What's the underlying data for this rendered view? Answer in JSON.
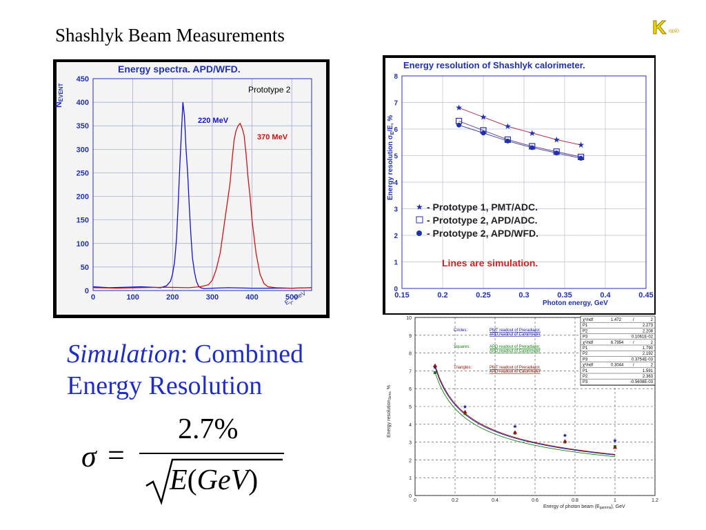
{
  "slide_title": "Shashlyk Beam Measurements",
  "logo_letter": "K",
  "logo_sub": "opio",
  "simulation_text": {
    "italic": "Simulation",
    "rest": ": Combined",
    "line2": "Energy Resolution"
  },
  "formula": {
    "lhs": "σ",
    "eq": "=",
    "numerator": "2.7%",
    "den_E": "E",
    "den_open": "(",
    "den_unit": "GeV",
    "den_close": ")"
  },
  "chart_data": [
    {
      "type": "line",
      "title": "Energy spectra. APD/WFD.",
      "annotation": "Prototype 2",
      "ylabel": "N",
      "ylabel_sub": "EVENT",
      "xlabel": "E",
      "xlabel_sub": "γ",
      "xlabel_unit": ", MeV",
      "xlim": [
        0,
        550
      ],
      "ylim": [
        0,
        450
      ],
      "xticks": [
        0,
        100,
        200,
        300,
        400,
        500
      ],
      "yticks": [
        0,
        50,
        100,
        150,
        200,
        250,
        300,
        350,
        400,
        450
      ],
      "grid": true,
      "series": [
        {
          "name": "220 MeV",
          "color": "#1010d0",
          "x": [
            0,
            40,
            80,
            120,
            150,
            170,
            185,
            195,
            200,
            205,
            210,
            214,
            218,
            222,
            226,
            230,
            234,
            238,
            242,
            246,
            250,
            255,
            260,
            265,
            270,
            280,
            300,
            340,
            400,
            500,
            550
          ],
          "y": [
            8,
            6,
            7,
            8,
            7,
            6,
            10,
            20,
            35,
            60,
            110,
            180,
            260,
            330,
            400,
            370,
            300,
            250,
            180,
            120,
            70,
            40,
            20,
            10,
            6,
            4,
            5,
            6,
            5,
            5,
            6
          ]
        },
        {
          "name": "370 MeV",
          "color": "#d01010",
          "x": [
            0,
            60,
            120,
            180,
            240,
            270,
            290,
            300,
            310,
            320,
            330,
            340,
            345,
            350,
            355,
            360,
            365,
            370,
            375,
            380,
            385,
            390,
            395,
            400,
            410,
            420,
            430,
            440,
            460,
            500,
            550
          ],
          "y": [
            6,
            5,
            6,
            7,
            6,
            8,
            12,
            22,
            45,
            80,
            140,
            200,
            230,
            280,
            320,
            340,
            350,
            355,
            345,
            330,
            290,
            240,
            200,
            150,
            80,
            35,
            15,
            8,
            6,
            5,
            6
          ]
        }
      ]
    },
    {
      "type": "scatter",
      "title": "Energy resolution of Shashlyk calorimeter.",
      "ylabel": "Energy resolution σ",
      "ylabel_sub": "E",
      "ylabel_unit": "/E, %",
      "xlabel": "Photon energy, GeV",
      "xlim": [
        0.15,
        0.45
      ],
      "ylim": [
        0,
        8
      ],
      "xticks": [
        "0.15",
        "0.2",
        "0.25",
        "0.3",
        "0.35",
        "0.4",
        "0.45"
      ],
      "yticks": [
        "0",
        "1",
        "2",
        "3",
        "4",
        "5",
        "6",
        "7",
        "8"
      ],
      "grid": true,
      "legend": [
        "- Prototype 1, PMT/ADC.",
        "- Prototype 2, APD/ADC.",
        "- Prototype 2, APD/WFD."
      ],
      "note": "Lines are simulation.",
      "series": [
        {
          "name": "Prototype 1, PMT/ADC.",
          "marker": "star",
          "color": "#2030b0",
          "x": [
            0.22,
            0.25,
            0.28,
            0.31,
            0.34,
            0.37
          ],
          "y": [
            6.8,
            6.45,
            6.1,
            5.85,
            5.6,
            5.4
          ]
        },
        {
          "name": "Prototype 2, APD/ADC.",
          "marker": "square",
          "color": "#2030b0",
          "x": [
            0.22,
            0.25,
            0.28,
            0.31,
            0.34,
            0.37
          ],
          "y": [
            6.3,
            5.95,
            5.6,
            5.35,
            5.15,
            4.95
          ]
        },
        {
          "name": "Prototype 2, APD/WFD.",
          "marker": "dot",
          "color": "#2030b0",
          "x": [
            0.22,
            0.25,
            0.28,
            0.31,
            0.34,
            0.37
          ],
          "y": [
            6.15,
            5.85,
            5.55,
            5.3,
            5.1,
            4.9
          ]
        }
      ]
    },
    {
      "type": "line",
      "ylabel": "Energy resolution",
      "ylabel_sub": "Sens",
      "ylabel_unit": ", %",
      "xlabel": "Energy of photon beam (E",
      "xlabel_sub": "gamma",
      "xlabel_unit": "), GeV",
      "xlim": [
        0,
        1.2
      ],
      "ylim": [
        0,
        10
      ],
      "xticks": [
        "0",
        "0.2",
        "0.4",
        "0.6",
        "0.8",
        "1",
        "1.2"
      ],
      "yticks": [
        "0",
        "1",
        "2",
        "3",
        "4",
        "5",
        "6",
        "7",
        "8",
        "9",
        "10"
      ],
      "grid": true,
      "legend_notes": [
        {
          "label": "Circles:",
          "text": "PMT readout of Preradiator,",
          "text2": "APD readout of Calorimeter",
          "color": "#1010a0"
        },
        {
          "label": "Squares:",
          "text": "APD readout of Preradiator,",
          "text2": "APD readout of Calorimeter",
          "color": "#108010"
        },
        {
          "label": "Triangles:",
          "text": "PMT readout of Preradiator,",
          "text2": "APD readout of Calorimeter",
          "color": "#a01010"
        }
      ],
      "stats": [
        [
          "χ²/ndf",
          "1.472",
          "/",
          "2"
        ],
        [
          "P1",
          "",
          "",
          "2.273"
        ],
        [
          "P2",
          "",
          "",
          "2.208"
        ],
        [
          "P3",
          "",
          "",
          "0.1061E-02"
        ],
        [
          "χ²/ndf",
          "6.7954",
          "/",
          "2"
        ],
        [
          "P1",
          "",
          "",
          "1.790"
        ],
        [
          "P2",
          "",
          "",
          "2.192"
        ],
        [
          "P3",
          "",
          "",
          "0.3754E-03"
        ],
        [
          "χ²/ndf",
          "0.3044",
          "/",
          "2"
        ],
        [
          "P1",
          "",
          "",
          "1.591"
        ],
        [
          "P2",
          "",
          "",
          "2.363"
        ],
        [
          "P3",
          "",
          "",
          "-0.5608E-03"
        ]
      ],
      "series": [
        {
          "name": "Circles",
          "color": "#1010a0",
          "x": [
            0.1,
            0.25,
            0.5,
            0.75,
            1.0
          ],
          "y": [
            7.2,
            5.0,
            3.9,
            3.4,
            3.1
          ]
        },
        {
          "name": "Squares",
          "color": "#108010",
          "x": [
            0.1,
            0.25,
            0.5,
            0.75,
            1.0
          ],
          "y": [
            6.9,
            4.6,
            3.5,
            3.0,
            2.75
          ]
        },
        {
          "name": "Triangles",
          "color": "#a01010",
          "x": [
            0.1,
            0.25,
            0.5,
            0.75,
            1.0
          ],
          "y": [
            7.3,
            4.7,
            3.55,
            3.05,
            2.7
          ]
        }
      ]
    }
  ]
}
